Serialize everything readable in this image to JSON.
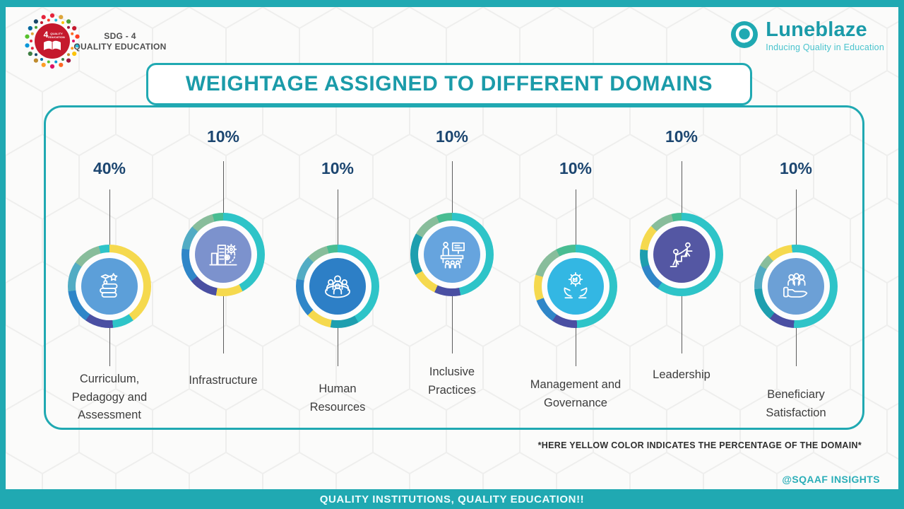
{
  "title": "WEIGHTAGE ASSIGNED TO DIFFERENT DOMAINS",
  "header": {
    "sdg": {
      "label_line1": "SDG - 4",
      "label_line2": "QUALITY EDUCATION",
      "wheel_number": "4",
      "wheel_word1": "QUALITY",
      "wheel_word2": "EDUCATION"
    },
    "brand": {
      "name": "Luneblaze",
      "tagline": "Inducing Quality in Education"
    }
  },
  "note": "*HERE YELLOW COLOR INDICATES THE PERCENTAGE OF THE DOMAIN*",
  "credit": "@SQAAF INSIGHTS",
  "footer_slogan": "QUALITY INSTITUTIONS, QUALITY EDUCATION!!",
  "colors": {
    "frame_teal": "#20A9B2",
    "title_teal": "#1B9BA9",
    "percentage_navy": "#1C4670",
    "label_gray": "#3D3D3D",
    "highlight_yellow": "#F5D94E"
  },
  "chart_data": {
    "type": "pie",
    "title": "WEIGHTAGE ASSIGNED TO DIFFERENT DOMAINS",
    "categories": [
      "Curriculum, Pedagogy and Assessment",
      "Infrastructure",
      "Human Resources",
      "Inclusive Practices",
      "Management and Governance",
      "Leadership",
      "Beneficiary Satisfaction"
    ],
    "values": [
      40,
      10,
      10,
      10,
      10,
      10,
      10
    ],
    "unit": "%",
    "legend_position": "none",
    "annotation": "*HERE YELLOW COLOR INDICATES THE PERCENTAGE OF THE DOMAIN*"
  },
  "domains": [
    {
      "pct": "40%",
      "label": "Curriculum, Pedagogy and Assessment",
      "icon": "books-graduation-icon",
      "inner_color": "#5C9FD9",
      "ring": [
        [
          "#F5D94E",
          145
        ],
        [
          "#2EC4C8",
          175
        ],
        [
          "#4A4FA2",
          215
        ],
        [
          "#2F86C8",
          263
        ],
        [
          "#52ACC4",
          305
        ],
        [
          "#88BD9B",
          345
        ],
        [
          "#2EC4C8",
          360
        ]
      ]
    },
    {
      "pct": "10%",
      "label": "Infrastructure",
      "icon": "buildings-gears-icon",
      "inner_color": "#7C92CD",
      "ring": [
        [
          "#2EC4C8",
          152
        ],
        [
          "#F5D94E",
          190
        ],
        [
          "#4A4FA2",
          230
        ],
        [
          "#2F86C8",
          278
        ],
        [
          "#52ACC4",
          312
        ],
        [
          "#88BD9B",
          345
        ],
        [
          "#49BD92",
          360
        ]
      ]
    },
    {
      "pct": "10%",
      "label": "Human Resources",
      "icon": "people-group-icon",
      "inner_color": "#2D7FC6",
      "ring": [
        [
          "#2EC4C8",
          150
        ],
        [
          "#1E9FAF",
          190
        ],
        [
          "#F5D94E",
          226
        ],
        [
          "#2F86C8",
          280
        ],
        [
          "#52ACC4",
          315
        ],
        [
          "#88BD9B",
          345
        ],
        [
          "#49BD92",
          360
        ]
      ]
    },
    {
      "pct": "10%",
      "label": "Inclusive Practices",
      "icon": "classroom-icon",
      "inner_color": "#66A4DE",
      "ring": [
        [
          "#2EC4C8",
          168
        ],
        [
          "#4A4FA2",
          205
        ],
        [
          "#F5D94E",
          241
        ],
        [
          "#1E9FAF",
          300
        ],
        [
          "#88BD9B",
          338
        ],
        [
          "#49BD92",
          360
        ]
      ]
    },
    {
      "pct": "10%",
      "label": "Management and Governance",
      "icon": "hands-gear-icon",
      "inner_color": "#33B7E3",
      "ring": [
        [
          "#2EC4C8",
          178
        ],
        [
          "#4A4FA2",
          214
        ],
        [
          "#2F86C8",
          250
        ],
        [
          "#F5D94E",
          286
        ],
        [
          "#88BD9B",
          332
        ],
        [
          "#49BD92",
          360
        ]
      ]
    },
    {
      "pct": "10%",
      "label": "Leadership",
      "icon": "leadership-stairs-icon",
      "inner_color": "#5457A3",
      "ring": [
        [
          "#2EC4C8",
          215
        ],
        [
          "#2F86C8",
          252
        ],
        [
          "#1E9FAF",
          277
        ],
        [
          "#F5D94E",
          313
        ],
        [
          "#88BD9B",
          346
        ],
        [
          "#49BD92",
          360
        ]
      ]
    },
    {
      "pct": "10%",
      "label": "Beneficiary Satisfaction",
      "icon": "hand-people-icon",
      "inner_color": "#6CA0D6",
      "ring": [
        [
          "#2EC4C8",
          183
        ],
        [
          "#4A4FA2",
          219
        ],
        [
          "#1E9FAF",
          266
        ],
        [
          "#52ACC4",
          300
        ],
        [
          "#88BD9B",
          318
        ],
        [
          "#F5D94E",
          354
        ],
        [
          "#2EC4C8",
          360
        ]
      ]
    }
  ]
}
